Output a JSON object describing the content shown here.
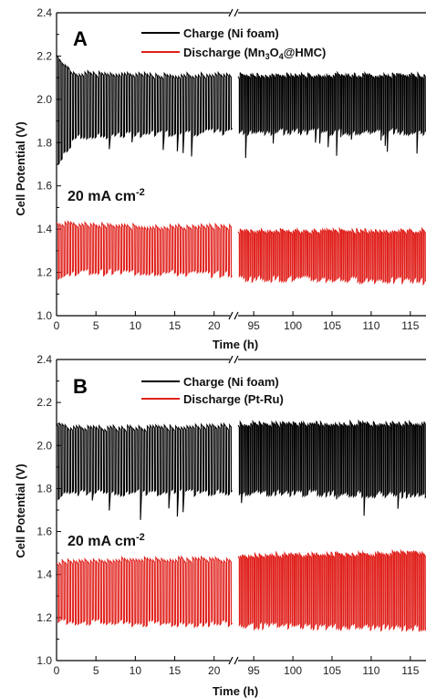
{
  "chart_data": [
    {
      "type": "line",
      "panel_label": "A",
      "xlabel": "Time (h)",
      "ylabel": "Cell Potential (V)",
      "ylim": [
        1.0,
        2.4
      ],
      "yticks": [
        "1.0",
        "1.2",
        "1.4",
        "1.6",
        "1.8",
        "2.0",
        "2.2",
        "2.4"
      ],
      "x_segments": [
        [
          0,
          22
        ],
        [
          93,
          117
        ]
      ],
      "xticks": [
        "0",
        "5",
        "10",
        "15",
        "20",
        "95",
        "100",
        "105",
        "110",
        "115"
      ],
      "annotation_main": "20 mA cm",
      "annotation_exp": "-2",
      "legend": [
        {
          "name_main": "Charge (Ni foam)",
          "name_sub": "",
          "name_tail": "",
          "color": "#000000"
        },
        {
          "name_main": "Discharge (Mn",
          "name_sub": "3",
          "name_mid": "O",
          "name_sub2": "4",
          "name_tail": "@HMC)",
          "color": "#e0201b"
        }
      ],
      "series": [
        {
          "name": "Charge (Ni foam)",
          "color": "#000000",
          "upper_level": [
            2.2,
            2.12,
            2.11,
            2.11,
            2.11,
            2.11
          ],
          "lower_level": [
            1.7,
            1.82,
            1.84,
            1.85,
            1.85,
            1.85
          ],
          "level_x": [
            0,
            2,
            10,
            22,
            100,
            117
          ]
        },
        {
          "name": "Discharge (Mn3O4@HMC)",
          "color": "#e0201b",
          "upper_level": [
            1.43,
            1.42,
            1.41,
            1.41,
            1.39,
            1.39
          ],
          "lower_level": [
            1.17,
            1.2,
            1.2,
            1.19,
            1.17,
            1.16
          ],
          "level_x": [
            0,
            2,
            10,
            22,
            100,
            117
          ]
        }
      ]
    },
    {
      "type": "line",
      "panel_label": "B",
      "xlabel": "Time (h)",
      "ylabel": "Cell Potential (V)",
      "ylim": [
        1.0,
        2.4
      ],
      "yticks": [
        "1.0",
        "1.2",
        "1.4",
        "1.6",
        "1.8",
        "2.0",
        "2.2",
        "2.4"
      ],
      "x_segments": [
        [
          0,
          22
        ],
        [
          93,
          117
        ]
      ],
      "xticks": [
        "0",
        "5",
        "10",
        "15",
        "20",
        "95",
        "100",
        "105",
        "110",
        "115"
      ],
      "annotation_main": "20 mA cm",
      "annotation_exp": "-2",
      "legend": [
        {
          "name_main": "Charge (Ni foam)",
          "color": "#000000"
        },
        {
          "name_main": "Discharge (Pt-Ru)",
          "color": "#e0201b"
        }
      ],
      "series": [
        {
          "name": "Charge (Ni foam)",
          "color": "#000000",
          "upper_level": [
            2.1,
            2.08,
            2.08,
            2.09,
            2.1,
            2.1
          ],
          "lower_level": [
            1.76,
            1.78,
            1.78,
            1.78,
            1.78,
            1.77
          ],
          "level_x": [
            0,
            2,
            10,
            22,
            100,
            117
          ]
        },
        {
          "name": "Discharge (Pt-Ru)",
          "color": "#e0201b",
          "upper_level": [
            1.45,
            1.46,
            1.47,
            1.47,
            1.49,
            1.5
          ],
          "lower_level": [
            1.18,
            1.18,
            1.17,
            1.17,
            1.16,
            1.15
          ],
          "level_x": [
            0,
            2,
            10,
            22,
            100,
            117
          ]
        }
      ]
    }
  ]
}
